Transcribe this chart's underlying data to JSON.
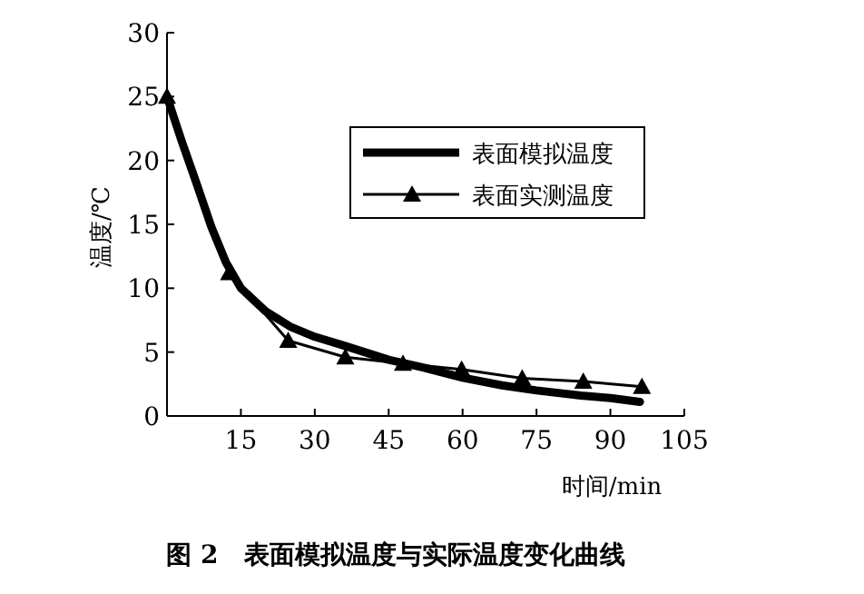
{
  "chart_data": {
    "type": "line",
    "title": "图 2　表面模拟温度与实际温度变化曲线",
    "xlabel": "时间/min",
    "ylabel": "温度/℃",
    "xlim": [
      0,
      105
    ],
    "xticks": [
      15,
      30,
      45,
      60,
      75,
      90,
      105
    ],
    "ylim": [
      0,
      30
    ],
    "yticks": [
      0,
      5,
      10,
      15,
      20,
      25,
      30
    ],
    "legend": "top right",
    "grid": false,
    "series": [
      {
        "name": "表面模拟温度",
        "color": "#000000",
        "marker": "none",
        "line_style": "solid",
        "x": [
          0,
          3,
          6,
          9,
          12,
          15,
          20,
          25,
          30,
          36,
          45,
          52,
          60,
          68,
          75,
          84,
          90,
          96
        ],
        "values": [
          25,
          21.5,
          18.2,
          14.8,
          12,
          10,
          8.2,
          7,
          6.2,
          5.5,
          4.4,
          3.8,
          3.0,
          2.4,
          2.0,
          1.6,
          1.4,
          1.1
        ]
      },
      {
        "name": "表面实测温度",
        "color": "#000000",
        "marker": "triangle",
        "line_style": "solid",
        "x": [
          0,
          12.6,
          24.6,
          36.2,
          47.9,
          59.8,
          72.1,
          84.5,
          96.4
        ],
        "values": [
          25,
          11.2,
          5.9,
          4.6,
          4.1,
          3.65,
          2.95,
          2.7,
          2.3
        ]
      }
    ]
  }
}
